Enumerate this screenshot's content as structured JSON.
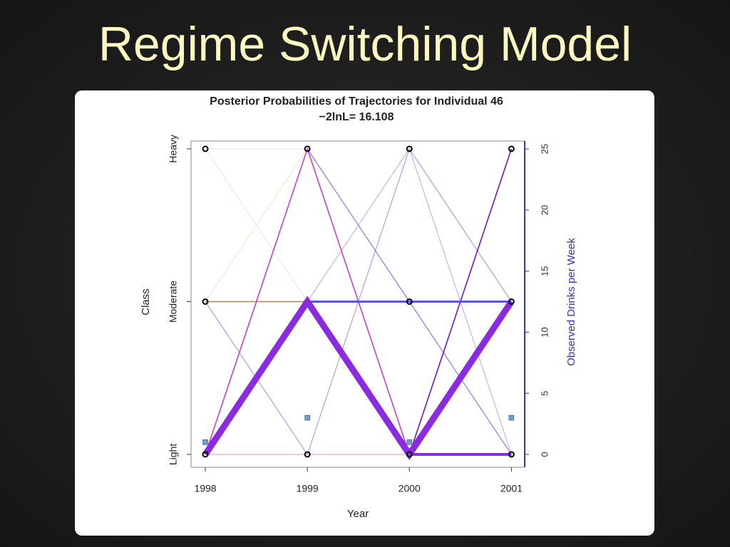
{
  "slide_title": "Regime Switching Model",
  "chart_data": {
    "type": "line",
    "title": "Posterior Probabilities of Trajectories for Individual 46",
    "subtitle": "−2lnL= 16.108",
    "xlabel": "Year",
    "ylabel": "Class",
    "y2label": "Observed Drinks per Week",
    "x": [
      1998,
      1999,
      2000,
      2001
    ],
    "xlim": [
      1997.86,
      2001.13
    ],
    "xticks": [
      1998,
      1999,
      2000,
      2001
    ],
    "ylim": [
      0.916,
      3.051
    ],
    "yticks": [
      {
        "value": 1,
        "label": "Light"
      },
      {
        "value": 2,
        "label": "Moderate"
      },
      {
        "value": 3,
        "label": "Heavy"
      }
    ],
    "y2lim": [
      -1.05,
      25.65
    ],
    "y2ticks": [
      0,
      5,
      10,
      15,
      20,
      25
    ],
    "y2color": "#3333bb",
    "series": [
      {
        "color": "#d8f0d8",
        "width": 1,
        "values": [
          3,
          2,
          1,
          1
        ]
      },
      {
        "color": "#f5e6c0",
        "width": 1,
        "values": [
          2,
          3,
          1,
          1
        ]
      },
      {
        "color": "#e8d8f5",
        "width": 1,
        "values": [
          3,
          3,
          2,
          1
        ]
      },
      {
        "color": "#f4b8c8",
        "width": 1.5,
        "values": [
          1,
          1,
          1,
          1
        ]
      },
      {
        "color": "#d07a20",
        "width": 1.5,
        "values": [
          2,
          2,
          null,
          null
        ]
      },
      {
        "color": "#b9a3f0",
        "width": 1,
        "values": [
          1,
          2,
          3,
          1
        ]
      },
      {
        "color": "#c9b6f2",
        "width": 1,
        "values": [
          1,
          3,
          2,
          1
        ]
      },
      {
        "color": "#a58be8",
        "width": 1,
        "values": [
          2,
          1,
          3,
          2
        ]
      },
      {
        "color": "#7a6ee0",
        "width": 1,
        "values": [
          null,
          3,
          2,
          1
        ]
      },
      {
        "color": "#cc33cc",
        "width": 1.5,
        "values": [
          1,
          3,
          1,
          3
        ]
      },
      {
        "color": "#6a1fb0",
        "width": 1.5,
        "values": [
          1,
          2,
          1,
          3
        ]
      },
      {
        "color": "#5a55dd",
        "width": 3,
        "values": [
          null,
          2,
          2,
          2
        ]
      },
      {
        "color": "#8a2be2",
        "width": 4,
        "values": [
          null,
          null,
          1,
          1
        ]
      },
      {
        "color": "#8a2be2",
        "width": 9,
        "values": [
          1,
          2,
          1,
          2
        ]
      },
      {
        "color": "#000000",
        "marker": "circle",
        "values": [
          3,
          3,
          3,
          3
        ]
      },
      {
        "color": "#000000",
        "marker": "circle",
        "values": [
          2,
          null,
          2,
          2
        ]
      },
      {
        "color": "#000000",
        "marker": "circle",
        "values": [
          1,
          1,
          1,
          1
        ]
      },
      {
        "color": "#6a9fd0",
        "marker": "square",
        "axis": "y2",
        "values": [
          1,
          3,
          1,
          3
        ]
      }
    ]
  }
}
